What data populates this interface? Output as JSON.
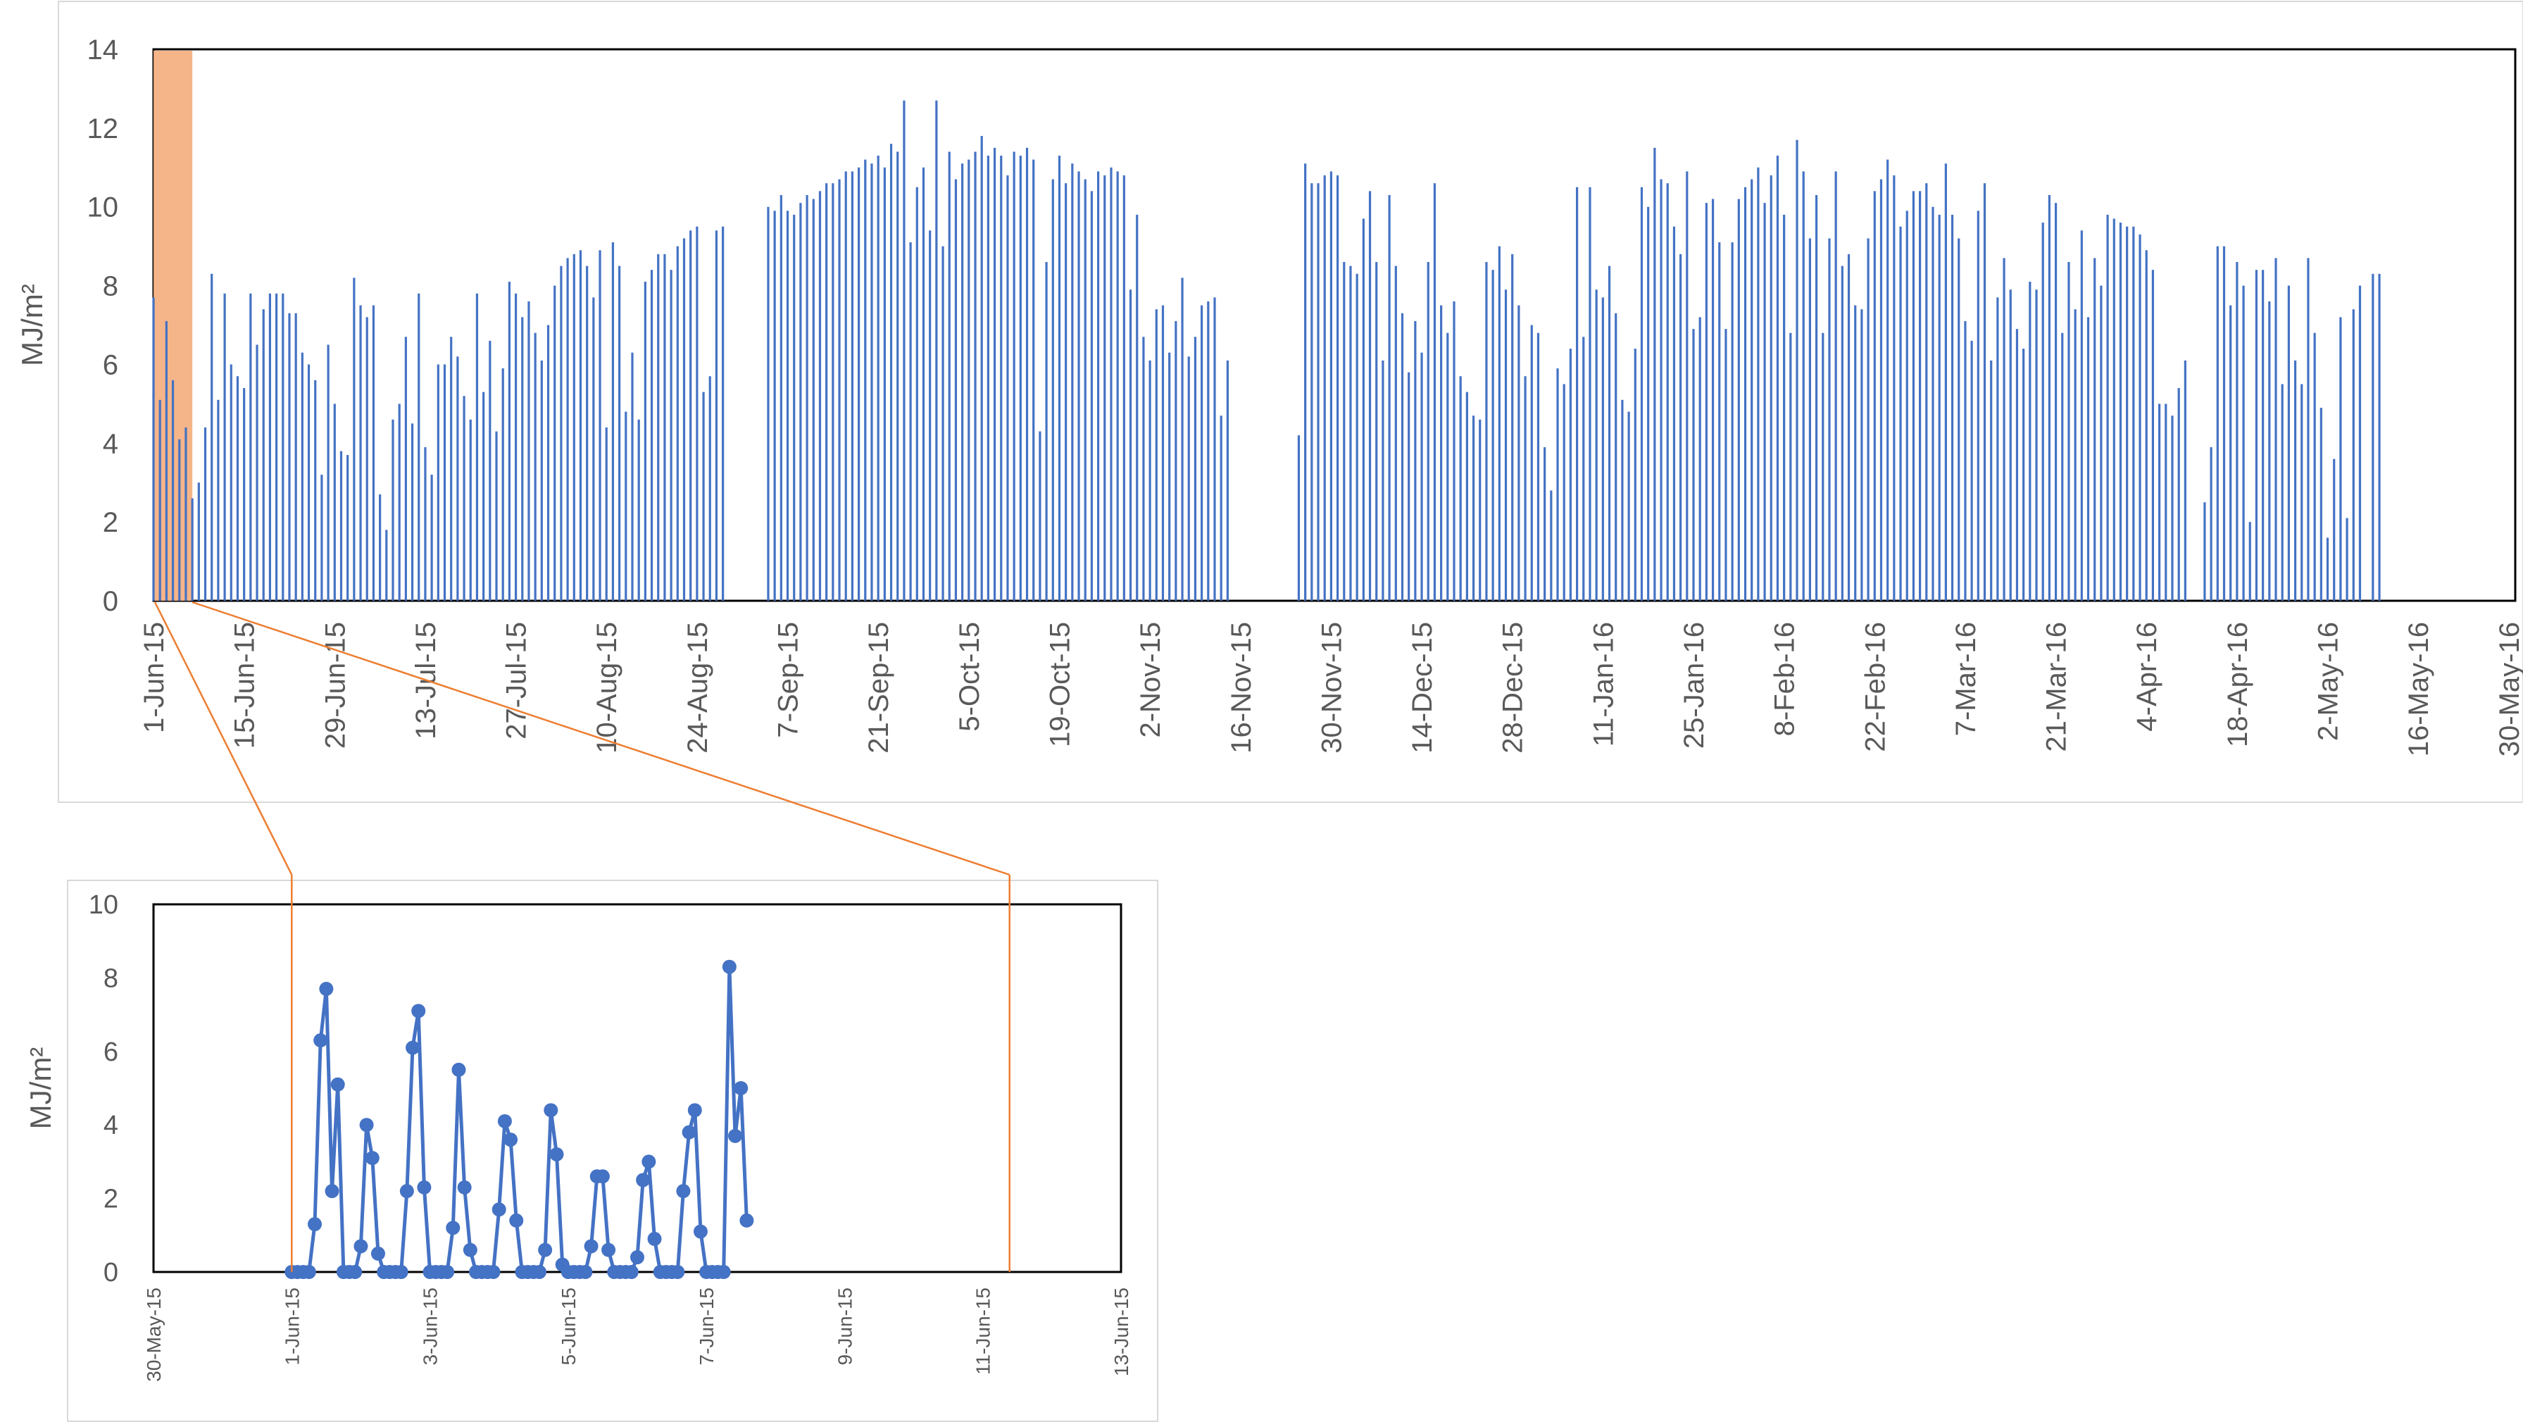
{
  "chart_data": [
    {
      "type": "bar",
      "ylabel": "MJ/m²",
      "ylim": [
        0,
        14
      ],
      "yticks": [
        "0",
        "2",
        "4",
        "6",
        "8",
        "10",
        "12",
        "14"
      ],
      "xlim": [
        "2015-06-01",
        "2016-05-31"
      ],
      "xticks": [
        "1-Jun-15",
        "15-Jun-15",
        "29-Jun-15",
        "13-Jul-15",
        "27-Jul-15",
        "10-Aug-15",
        "24-Aug-15",
        "7-Sep-15",
        "21-Sep-15",
        "5-Oct-15",
        "19-Oct-15",
        "2-Nov-15",
        "16-Nov-15",
        "30-Nov-15",
        "14-Dec-15",
        "28-Dec-15",
        "11-Jan-16",
        "25-Jan-16",
        "8-Feb-16",
        "22-Feb-16",
        "7-Mar-16",
        "21-Mar-16",
        "4-Apr-16",
        "18-Apr-16",
        "2-May-16",
        "16-May-16",
        "30-May-16"
      ],
      "highlight_range": [
        "2015-06-01",
        "2015-06-07"
      ],
      "highlight_color": "#f4b183",
      "bar_color": "#4472c4",
      "gaps": [
        [
          "2015-09-01",
          "2015-09-06"
        ],
        [
          "2015-12-01",
          "2015-12-10"
        ]
      ],
      "values_start": "2015-06-01",
      "values": [
        7.7,
        5.1,
        7.1,
        5.6,
        4.1,
        4.4,
        2.6,
        3.0,
        4.4,
        8.3,
        5.1,
        7.8,
        6.0,
        5.7,
        5.4,
        7.8,
        6.5,
        7.4,
        7.8,
        7.8,
        7.8,
        7.3,
        7.3,
        6.3,
        6.0,
        5.6,
        3.2,
        6.5,
        5.0,
        3.8,
        3.7,
        8.2,
        7.5,
        7.2,
        7.5,
        2.7,
        1.8,
        4.6,
        5.0,
        6.7,
        4.5,
        7.8,
        3.9,
        3.2,
        6.0,
        6.0,
        6.7,
        6.2,
        5.2,
        4.6,
        7.8,
        5.3,
        6.6,
        4.3,
        5.9,
        8.1,
        7.8,
        7.2,
        7.6,
        6.8,
        6.1,
        7.0,
        8.0,
        8.5,
        8.7,
        8.8,
        8.9,
        8.5,
        7.7,
        8.9,
        4.4,
        9.1,
        8.5,
        4.8,
        6.3,
        4.6,
        8.1,
        8.4,
        8.8,
        8.8,
        8.4,
        9.0,
        9.2,
        9.4,
        9.5,
        5.3,
        5.7,
        9.4,
        9.5,
        null,
        null,
        null,
        null,
        null,
        null,
        10.0,
        9.9,
        10.3,
        9.9,
        9.8,
        10.1,
        10.3,
        10.2,
        10.4,
        10.6,
        10.6,
        10.7,
        10.9,
        10.9,
        11.0,
        11.2,
        11.1,
        11.3,
        11.0,
        11.6,
        11.4,
        12.7,
        9.1,
        10.5,
        11.0,
        9.4,
        12.7,
        9.0,
        11.4,
        10.7,
        11.1,
        11.2,
        11.4,
        11.8,
        11.3,
        11.5,
        11.3,
        10.8,
        11.4,
        11.3,
        11.5,
        11.2,
        4.3,
        8.6,
        10.7,
        11.3,
        10.6,
        11.1,
        10.9,
        10.7,
        10.4,
        10.9,
        10.8,
        11.0,
        10.9,
        10.8,
        7.9,
        9.8,
        6.7,
        6.1,
        7.4,
        7.5,
        6.3,
        7.1,
        8.2,
        6.2,
        6.7,
        7.5,
        7.6,
        7.7,
        4.7,
        6.1,
        null,
        null,
        null,
        null,
        null,
        null,
        null,
        null,
        null,
        null,
        4.2,
        11.1,
        10.6,
        10.6,
        10.8,
        10.9,
        10.8,
        8.6,
        8.5,
        8.3,
        9.7,
        10.4,
        8.6,
        6.1,
        10.3,
        8.5,
        7.3,
        5.8,
        7.1,
        6.3,
        8.6,
        10.6,
        7.5,
        6.8,
        7.6,
        5.7,
        5.3,
        4.7,
        4.6,
        8.6,
        8.4,
        9.0,
        7.9,
        8.8,
        7.5,
        5.7,
        7.0,
        6.8,
        3.9,
        2.8,
        5.9,
        5.5,
        6.4,
        10.5,
        6.7,
        10.5,
        7.9,
        7.7,
        8.5,
        7.3,
        5.1,
        4.8,
        6.4,
        10.5,
        10.0,
        11.5,
        10.7,
        10.6,
        9.5,
        8.8,
        10.9,
        6.9,
        7.2,
        10.1,
        10.2,
        9.1,
        6.9,
        9.1,
        10.2,
        10.5,
        10.7,
        11.0,
        10.1,
        10.8,
        11.3,
        9.8,
        6.8,
        11.7,
        10.9,
        9.2,
        10.3,
        6.8,
        9.2,
        10.9,
        8.5,
        8.8,
        7.5,
        7.4,
        9.2,
        10.4,
        10.7,
        11.2,
        10.8,
        9.5,
        9.9,
        10.4,
        10.4,
        10.6,
        10.0,
        9.8,
        11.1,
        9.8,
        9.2,
        7.1,
        6.6,
        9.9,
        10.6,
        6.1,
        7.7,
        8.7,
        7.9,
        6.9,
        6.4,
        8.1,
        7.9,
        9.6,
        10.3,
        10.1,
        6.8,
        8.6,
        7.4,
        9.4,
        7.2,
        8.7,
        8.0,
        9.8,
        9.7,
        9.6,
        9.5,
        9.5,
        9.3,
        8.9,
        8.4,
        5.0,
        5.0,
        4.7,
        5.4,
        6.1,
        null,
        null,
        2.5,
        3.9,
        9.0,
        9.0,
        7.5,
        8.6,
        8.0,
        2.0,
        8.4,
        8.4,
        7.6,
        8.7,
        5.5,
        8.0,
        6.1,
        5.5,
        8.7,
        6.8,
        4.9,
        1.6,
        3.6,
        7.2,
        2.1,
        7.4,
        8.0,
        null,
        8.3,
        8.3
      ]
    },
    {
      "type": "line",
      "ylabel": "MJ/m²",
      "ylim": [
        0,
        10
      ],
      "yticks": [
        "0",
        "2",
        "4",
        "6",
        "8",
        "10"
      ],
      "xlim": [
        "2015-05-30",
        "2015-06-13"
      ],
      "xticks": [
        "30-May-15",
        "1-Jun-15",
        "3-Jun-15",
        "5-Jun-15",
        "7-Jun-15",
        "9-Jun-15",
        "11-Jun-15",
        "13-Jun-15"
      ],
      "line_color": "#4472c4",
      "points_start": "2015-06-01 00:00",
      "points_step_hours": 2,
      "values": [
        0,
        0,
        0,
        0,
        1.3,
        6.3,
        7.7,
        2.2,
        5.1,
        0,
        0,
        0,
        0.7,
        4.0,
        3.1,
        0.5,
        0,
        0,
        0,
        0,
        2.2,
        6.1,
        7.1,
        2.3,
        0,
        0,
        0,
        0,
        1.2,
        5.5,
        2.3,
        0.6,
        0,
        0,
        0,
        0,
        1.7,
        4.1,
        3.6,
        1.4,
        0,
        0,
        0,
        0,
        0.6,
        4.4,
        3.2,
        0.2,
        0,
        0,
        0,
        0,
        0.7,
        2.6,
        2.6,
        0.6,
        0,
        0,
        0,
        0,
        0.4,
        2.5,
        3.0,
        0.9,
        0,
        0,
        0,
        0,
        2.2,
        3.8,
        4.4,
        1.1,
        0,
        0,
        0,
        0,
        8.3,
        3.7,
        5.0,
        1.4
      ]
    }
  ]
}
